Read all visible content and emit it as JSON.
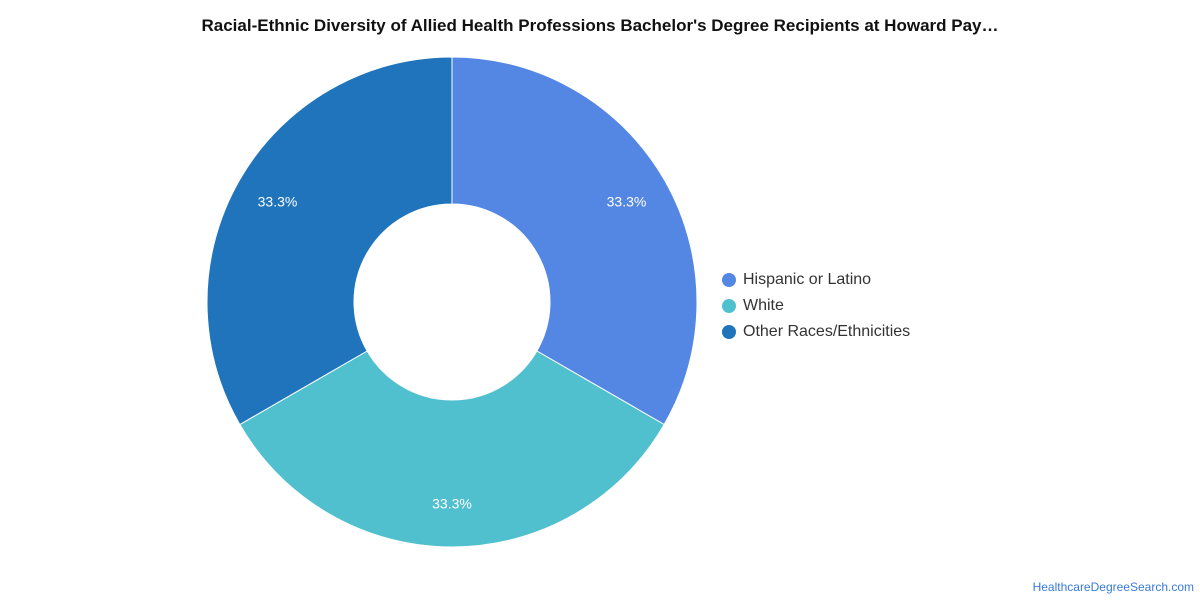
{
  "title": "Racial-Ethnic Diversity of Allied Health Professions Bachelor's Degree Recipients at Howard Pay…",
  "footer": "HealthcareDegreeSearch.com",
  "chart_data": {
    "type": "pie",
    "donut": true,
    "categories": [
      "Hispanic or Latino",
      "White",
      "Other Races/Ethnicities"
    ],
    "values": [
      33.3,
      33.3,
      33.3
    ],
    "labels": [
      "33.3%",
      "33.3%",
      "33.3%"
    ],
    "colors": [
      "#5486e4",
      "#50c0cf",
      "#1f74bb"
    ],
    "legend_position": "right"
  }
}
